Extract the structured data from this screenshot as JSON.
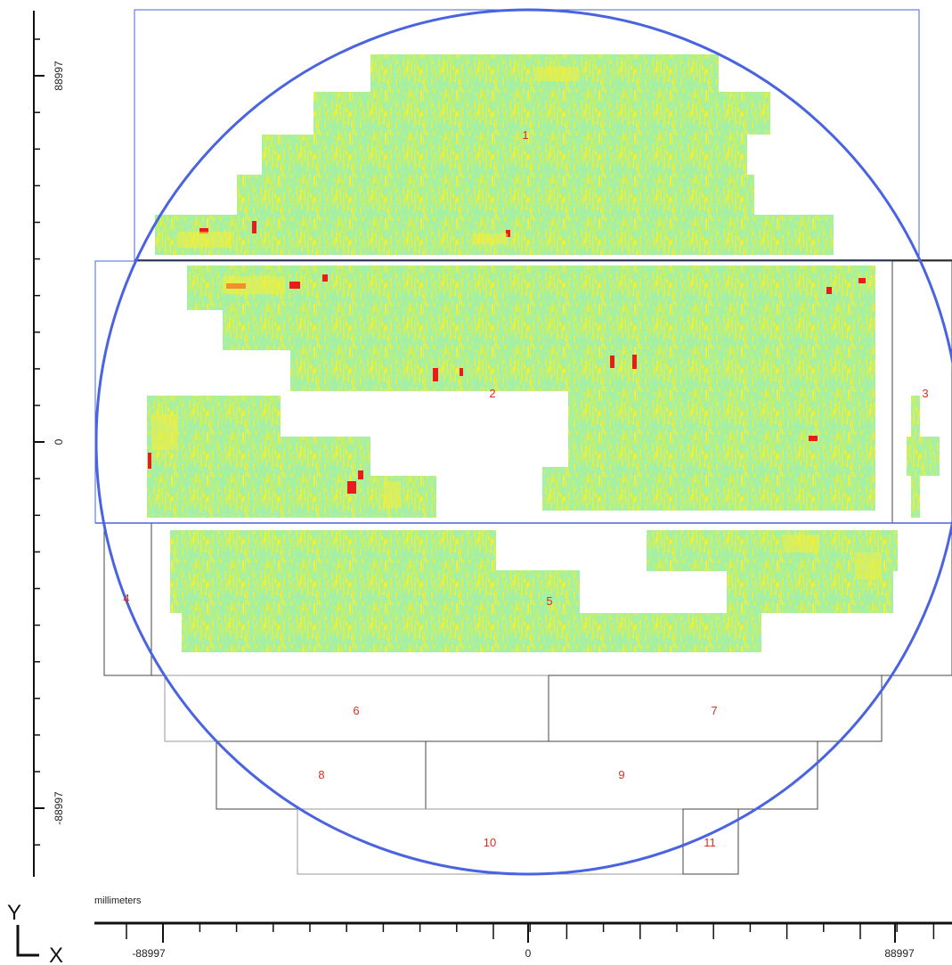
{
  "viewer": {
    "units_label": "millimeters",
    "orientation": {
      "y": "Y",
      "x": "X"
    },
    "x_axis": {
      "ticks": [
        {
          "label": "-88997",
          "value": -88997
        },
        {
          "label": "0",
          "value": 0
        },
        {
          "label": "88997",
          "value": 88997
        }
      ]
    },
    "y_axis": {
      "ticks": [
        {
          "label": "88997",
          "value": 88997
        },
        {
          "label": "0",
          "value": 0
        },
        {
          "label": "-88997",
          "value": -88997
        }
      ]
    },
    "colors": {
      "wafer_outline": "#4a63e0",
      "region_border": "#444444",
      "region_label": "#d9301c",
      "map_low": "#a6f0a6",
      "map_mid": "#c8f060",
      "map_high": "#f5ef3a",
      "map_peak": "#e81c1c"
    },
    "regions": [
      {
        "id": "region-1",
        "label": "1"
      },
      {
        "id": "region-2",
        "label": "2"
      },
      {
        "id": "region-3",
        "label": "3"
      },
      {
        "id": "region-4",
        "label": "4"
      },
      {
        "id": "region-5",
        "label": "5"
      },
      {
        "id": "region-6",
        "label": "6"
      },
      {
        "id": "region-7",
        "label": "7"
      },
      {
        "id": "region-8",
        "label": "8"
      },
      {
        "id": "region-9",
        "label": "9"
      },
      {
        "id": "region-10",
        "label": "10"
      },
      {
        "id": "region-11",
        "label": "11"
      }
    ]
  }
}
